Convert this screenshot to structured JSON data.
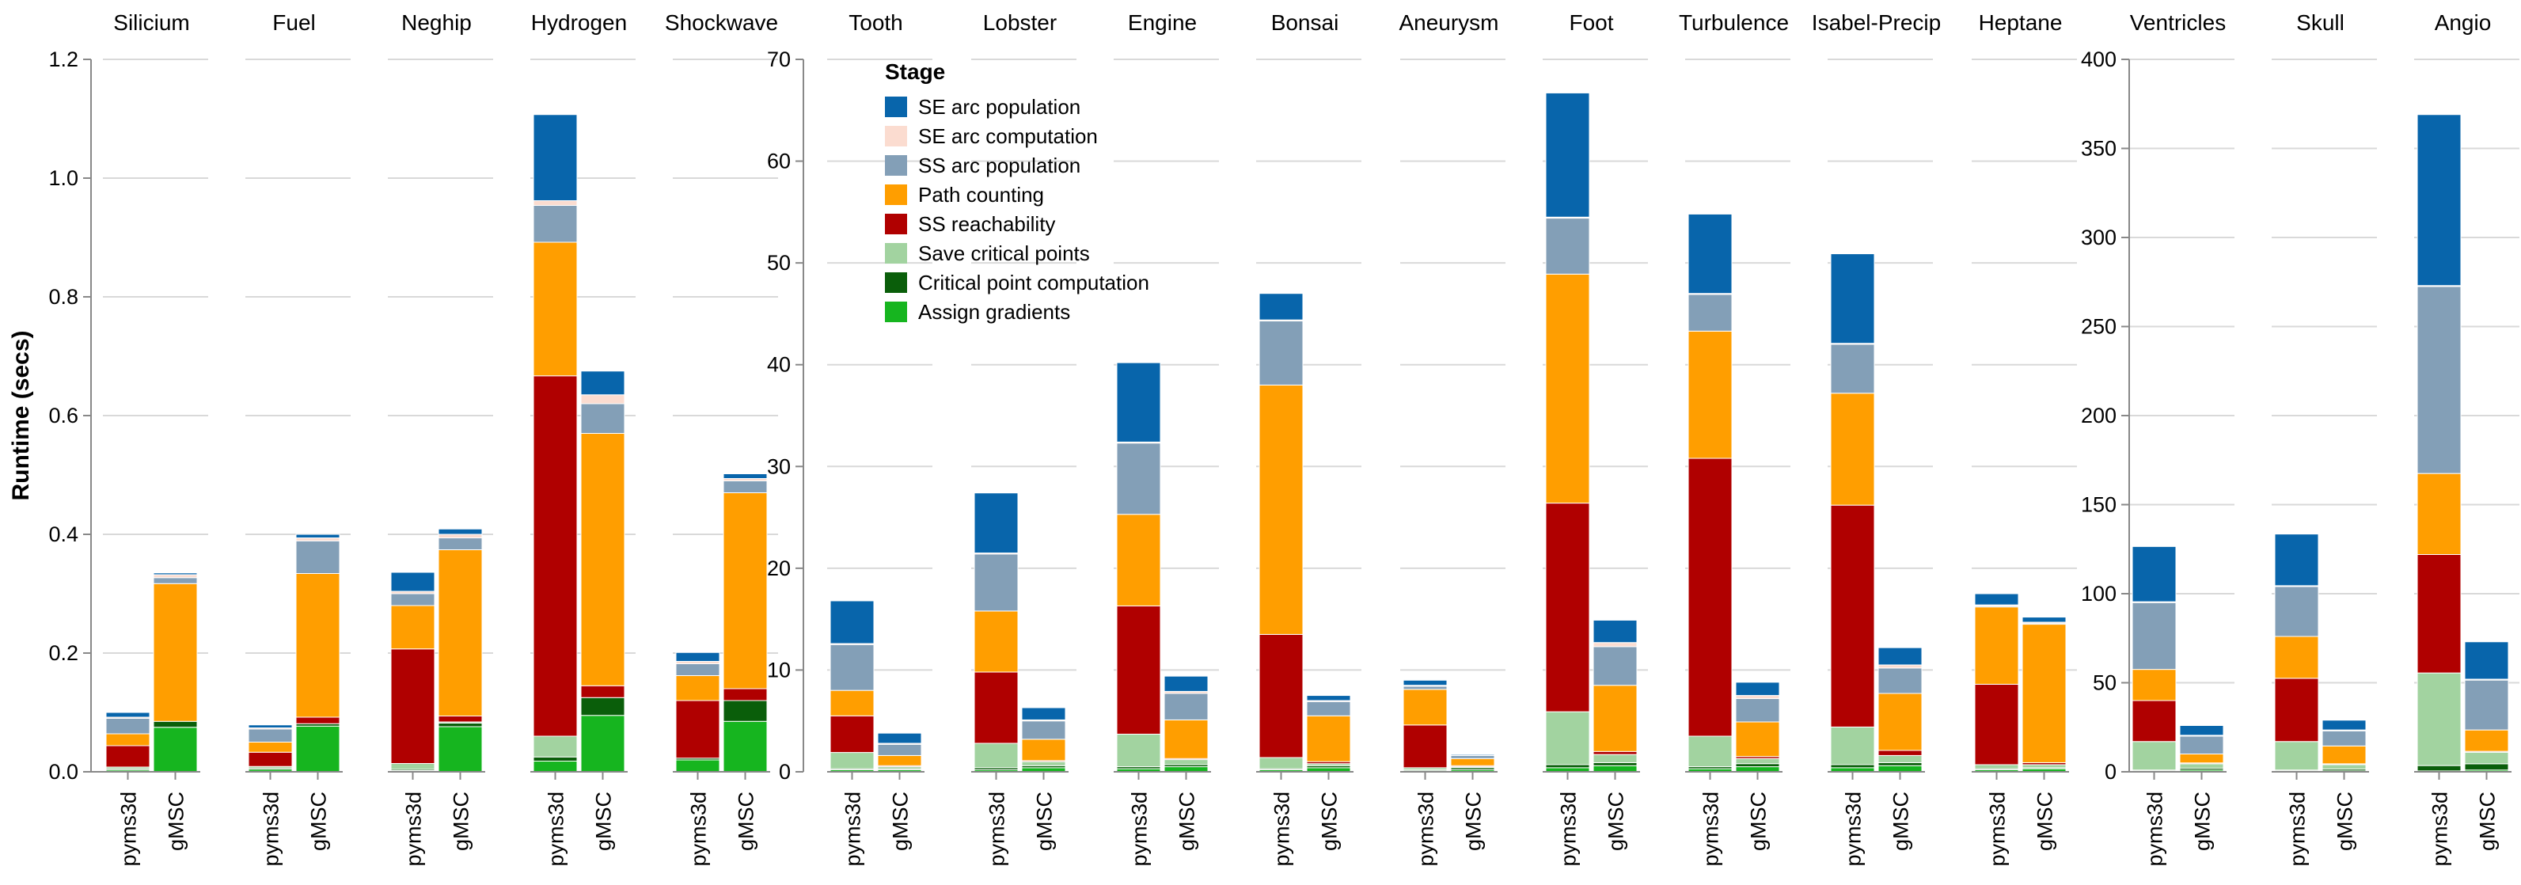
{
  "chart_data": {
    "type": "bar",
    "stacked": true,
    "ylabel": "Runtime (secs)",
    "grid": true,
    "legend": {
      "title": "Stage",
      "placement": "top-right of Tooth panel"
    },
    "stages": [
      {
        "name": "Assign gradients",
        "color": "#16b51f"
      },
      {
        "name": "Critical point computation",
        "color": "#0a5e0a"
      },
      {
        "name": "Save critical points",
        "color": "#a2d3a0"
      },
      {
        "name": "SS reachability",
        "color": "#b00000"
      },
      {
        "name": "Path counting",
        "color": "#ff9e00"
      },
      {
        "name": "SS arc population",
        "color": "#839fb7"
      },
      {
        "name": "SE arc computation",
        "color": "#fbdcd0"
      },
      {
        "name": "SE arc population",
        "color": "#0865ab"
      }
    ],
    "legend_order": [
      "SE arc population",
      "SE arc computation",
      "SS arc population",
      "Path counting",
      "SS reachability",
      "Save critical points",
      "Critical point computation",
      "Assign gradients"
    ],
    "categories": [
      "pyms3d",
      "gMSC"
    ],
    "groups": [
      {
        "yticks": [
          "0.0",
          "0.2",
          "0.4",
          "0.6",
          "0.8",
          "1.0",
          "1.2"
        ],
        "ylim": [
          0,
          1.2
        ],
        "panels": [
          {
            "title": "Silicium",
            "bars": [
              [
                0.003,
                0.002,
                0.003,
                0.036,
                0.02,
                0.026,
                0.002,
                0.008
              ],
              [
                0.075,
                0.01,
                0.0,
                0.0,
                0.232,
                0.01,
                0.005,
                0.003
              ]
            ]
          },
          {
            "title": "Fuel",
            "bars": [
              [
                0.004,
                0.002,
                0.003,
                0.024,
                0.017,
                0.022,
                0.002,
                0.005
              ],
              [
                0.077,
                0.004,
                0.0,
                0.011,
                0.242,
                0.055,
                0.005,
                0.006
              ]
            ]
          },
          {
            "title": "Neghip",
            "bars": [
              [
                0.002,
                0.002,
                0.01,
                0.193,
                0.073,
                0.02,
                0.004,
                0.032
              ],
              [
                0.076,
                0.006,
                0.002,
                0.01,
                0.28,
                0.02,
                0.006,
                0.009
              ]
            ]
          },
          {
            "title": "Hydrogen",
            "bars": [
              [
                0.018,
                0.007,
                0.035,
                0.607,
                0.225,
                0.062,
                0.008,
                0.145
              ],
              [
                0.095,
                0.03,
                0.0,
                0.02,
                0.425,
                0.05,
                0.015,
                0.04
              ]
            ]
          },
          {
            "title": "Shockwave",
            "bars": [
              [
                0.02,
                0.003,
                0.0,
                0.097,
                0.042,
                0.02,
                0.004,
                0.015
              ],
              [
                0.085,
                0.035,
                0.0,
                0.02,
                0.33,
                0.02,
                0.004,
                0.008
              ]
            ]
          }
        ]
      },
      {
        "yticks": [
          "0",
          "10",
          "20",
          "30",
          "40",
          "50",
          "60",
          "70"
        ],
        "ylim": [
          0,
          70
        ],
        "panels": [
          {
            "title": "Tooth",
            "bars": [
              [
                0.2,
                0.1,
                1.6,
                3.6,
                2.5,
                4.5,
                0.1,
                4.2
              ],
              [
                0.2,
                0.1,
                0.2,
                0.1,
                1.0,
                1.1,
                0.1,
                1.0
              ]
            ]
          },
          {
            "title": "Lobster",
            "bars": [
              [
                0.2,
                0.2,
                2.4,
                7.0,
                6.0,
                5.6,
                0.1,
                5.9
              ],
              [
                0.4,
                0.2,
                0.4,
                0.1,
                2.1,
                1.8,
                0.1,
                1.2
              ]
            ]
          },
          {
            "title": "Engine",
            "bars": [
              [
                0.3,
                0.2,
                3.2,
                12.6,
                9.0,
                7.0,
                0.1,
                7.8
              ],
              [
                0.5,
                0.2,
                0.5,
                0.1,
                3.8,
                2.6,
                0.2,
                1.5
              ]
            ]
          },
          {
            "title": "Bonsai",
            "bars": [
              [
                0.2,
                0.1,
                1.1,
                12.1,
                24.5,
                6.3,
                0.1,
                2.6
              ],
              [
                0.4,
                0.2,
                0.2,
                0.2,
                4.5,
                1.4,
                0.1,
                0.5
              ]
            ]
          },
          {
            "title": "Aneurysm",
            "bars": [
              [
                0.1,
                0.1,
                0.2,
                4.2,
                3.5,
                0.3,
                0.1,
                0.5
              ],
              [
                0.2,
                0.2,
                0.1,
                0.1,
                0.7,
                0.3,
                0.0,
                0.1
              ]
            ]
          },
          {
            "title": "Foot",
            "bars": [
              [
                0.4,
                0.3,
                5.2,
                20.5,
                22.5,
                5.5,
                0.1,
                12.2
              ],
              [
                0.6,
                0.3,
                0.8,
                0.3,
                6.5,
                3.8,
                0.4,
                2.2
              ]
            ]
          },
          {
            "title": "Turbulence",
            "bars": [
              [
                0.3,
                0.2,
                3.0,
                27.3,
                12.5,
                3.6,
                0.1,
                7.8
              ],
              [
                0.5,
                0.3,
                0.5,
                0.2,
                3.4,
                2.3,
                0.3,
                1.3
              ]
            ]
          },
          {
            "title": "Isabel-Precip",
            "bars": [
              [
                0.4,
                0.3,
                3.7,
                21.8,
                11.0,
                4.8,
                0.1,
                8.8
              ],
              [
                0.6,
                0.3,
                0.7,
                0.5,
                5.6,
                2.5,
                0.3,
                1.7
              ]
            ]
          },
          {
            "title": "Heptane",
            "bars": [
              [
                0.2,
                0.1,
                0.4,
                7.9,
                7.6,
                0.1,
                0.1,
                1.1
              ],
              [
                0.3,
                0.1,
                0.3,
                0.2,
                13.6,
                0.1,
                0.1,
                0.5
              ]
            ]
          }
        ]
      },
      {
        "yticks": [
          "0",
          "50",
          "100",
          "150",
          "200",
          "250",
          "300",
          "350",
          "400"
        ],
        "ylim": [
          0,
          400
        ],
        "panels": [
          {
            "title": "Ventricles",
            "bars": [
              [
                0.5,
                0.5,
                16.0,
                23.0,
                17.5,
                37.5,
                0.5,
                31.0
              ],
              [
                1.0,
                1.0,
                2.5,
                0.5,
                5.0,
                10.0,
                0.5,
                5.5
              ]
            ]
          },
          {
            "title": "Skull",
            "bars": [
              [
                0.5,
                0.5,
                16.0,
                35.5,
                23.5,
                28.0,
                0.5,
                29.0
              ],
              [
                0.5,
                1.0,
                2.5,
                0.5,
                10.0,
                8.5,
                0.5,
                5.5
              ]
            ]
          },
          {
            "title": "Angio",
            "bars": [
              [
                0.5,
                3.0,
                52.0,
                66.5,
                45.5,
                105.0,
                0.5,
                96.0
              ],
              [
                1.0,
                3.5,
                6.5,
                0.5,
                12.0,
                28.0,
                0.5,
                21.0
              ]
            ]
          }
        ]
      }
    ]
  }
}
